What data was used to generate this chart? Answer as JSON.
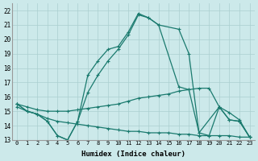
{
  "xlabel": "Humidex (Indice chaleur)",
  "xlim": [
    -0.5,
    23.5
  ],
  "ylim": [
    13,
    22.5
  ],
  "yticks": [
    13,
    14,
    15,
    16,
    17,
    18,
    19,
    20,
    21,
    22
  ],
  "xticks": [
    0,
    1,
    2,
    3,
    4,
    5,
    6,
    7,
    8,
    9,
    10,
    11,
    12,
    13,
    14,
    15,
    16,
    17,
    18,
    19,
    20,
    21,
    22,
    23
  ],
  "bg_color": "#cce9ea",
  "line_color": "#1a7a6e",
  "grid_color": "#aacfcf",
  "line1_x": [
    0,
    1,
    2,
    3,
    4,
    5,
    6,
    7,
    8,
    9,
    10,
    11,
    12,
    13,
    14,
    16,
    17,
    18,
    19,
    20,
    21,
    22,
    23
  ],
  "line1_y": [
    15.5,
    15.0,
    14.8,
    14.3,
    13.3,
    13.0,
    14.3,
    17.5,
    18.5,
    19.3,
    19.5,
    20.5,
    21.8,
    21.5,
    21.0,
    20.7,
    19.0,
    13.5,
    13.3,
    15.3,
    14.4,
    14.3,
    13.2
  ],
  "line2_x": [
    0,
    1,
    2,
    3,
    4,
    5,
    6,
    7,
    8,
    9,
    10,
    11,
    12,
    13,
    14,
    16,
    17,
    18,
    20,
    21,
    22,
    23
  ],
  "line2_y": [
    15.5,
    15.0,
    14.8,
    14.3,
    13.3,
    13.0,
    14.3,
    16.3,
    17.5,
    18.5,
    19.3,
    20.3,
    21.7,
    21.5,
    21.0,
    16.7,
    16.5,
    13.5,
    15.3,
    14.4,
    14.3,
    13.2
  ],
  "line3_x": [
    0,
    1,
    2,
    3,
    4,
    5,
    6,
    7,
    8,
    9,
    10,
    11,
    12,
    13,
    14,
    15,
    16,
    17,
    18,
    19,
    20,
    21,
    22,
    23
  ],
  "line3_y": [
    15.5,
    15.3,
    15.1,
    15.0,
    15.0,
    15.0,
    15.1,
    15.2,
    15.3,
    15.4,
    15.5,
    15.7,
    15.9,
    16.0,
    16.1,
    16.2,
    16.4,
    16.5,
    16.6,
    16.6,
    15.3,
    14.9,
    14.4,
    13.2
  ],
  "line4_x": [
    0,
    1,
    2,
    3,
    4,
    5,
    6,
    7,
    8,
    9,
    10,
    11,
    12,
    13,
    14,
    15,
    16,
    17,
    18,
    19,
    20,
    21,
    22,
    23
  ],
  "line4_y": [
    15.3,
    15.0,
    14.8,
    14.5,
    14.3,
    14.2,
    14.1,
    14.0,
    13.9,
    13.8,
    13.7,
    13.6,
    13.6,
    13.5,
    13.5,
    13.5,
    13.4,
    13.4,
    13.3,
    13.3,
    13.3,
    13.3,
    13.2,
    13.2
  ]
}
